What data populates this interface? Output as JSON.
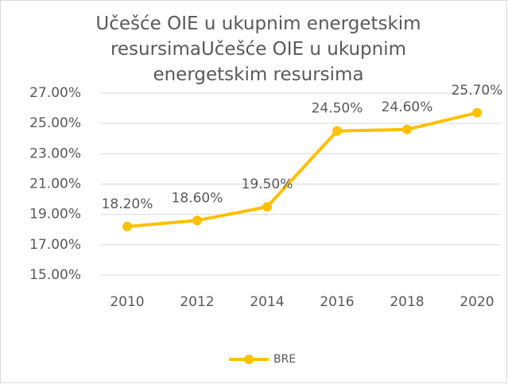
{
  "chart_data": {
    "type": "line",
    "title": "Učešće OIE u ukupnim energetskim resursimaUčešće OIE u ukupnim energetskim resursima",
    "categories": [
      "2010",
      "2012",
      "2014",
      "2016",
      "2018",
      "2020"
    ],
    "series": [
      {
        "name": "BRE",
        "color": "#ffc000",
        "values": [
          18.2,
          18.6,
          19.5,
          24.5,
          24.6,
          25.7
        ],
        "value_labels": [
          "18.20%",
          "18.60%",
          "19.50%",
          "24.50%",
          "24.60%",
          "25.70%"
        ]
      }
    ],
    "ylim": [
      15,
      27
    ],
    "yticks": [
      {
        "value": 15,
        "label": "15.00%"
      },
      {
        "value": 17,
        "label": "17.00%"
      },
      {
        "value": 19,
        "label": "19.00%"
      },
      {
        "value": 21,
        "label": "21.00%"
      },
      {
        "value": 23,
        "label": "23.00%"
      },
      {
        "value": 25,
        "label": "25.00%"
      },
      {
        "value": 27,
        "label": "27.00%"
      }
    ],
    "grid": true,
    "legend": "bottom"
  }
}
